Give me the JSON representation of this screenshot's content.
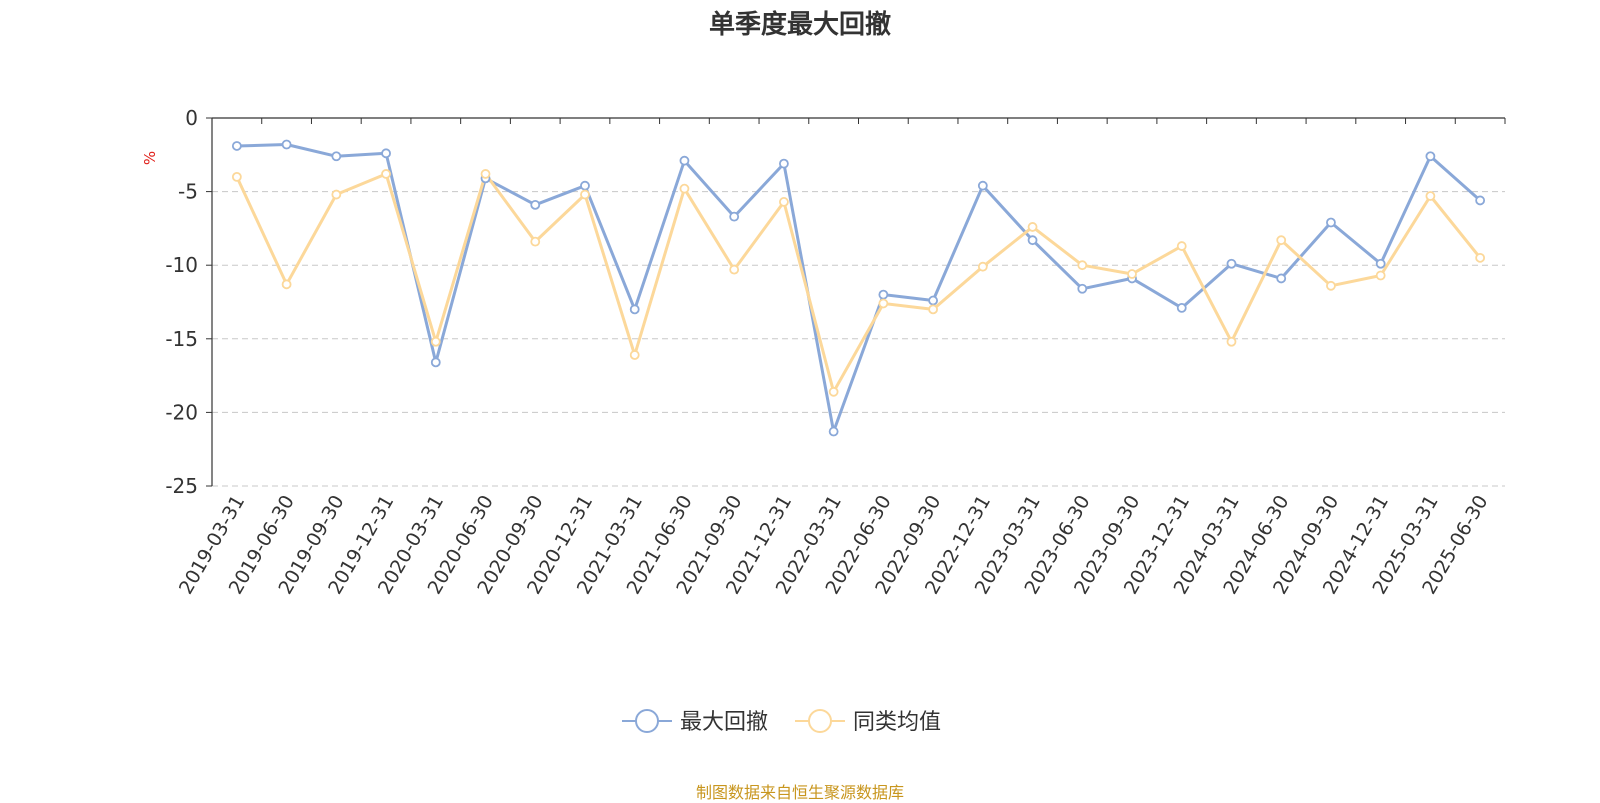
{
  "chart_data": {
    "type": "line",
    "title": "单季度最大回撤",
    "ylabel": "%",
    "xlabel": "",
    "ylim": [
      -25,
      0
    ],
    "yticks": [
      0,
      -5,
      -10,
      -15,
      -20,
      -25
    ],
    "grid": true,
    "legend_position": "bottom-center",
    "categories": [
      "2019-03-31",
      "2019-06-30",
      "2019-09-30",
      "2019-12-31",
      "2020-03-31",
      "2020-06-30",
      "2020-09-30",
      "2020-12-31",
      "2021-03-31",
      "2021-06-30",
      "2021-09-30",
      "2021-12-31",
      "2022-03-31",
      "2022-06-30",
      "2022-09-30",
      "2022-12-31",
      "2023-03-31",
      "2023-06-30",
      "2023-09-30",
      "2023-12-31",
      "2024-03-31",
      "2024-06-30",
      "2024-09-30",
      "2024-12-31",
      "2025-03-31",
      "2025-06-30"
    ],
    "series": [
      {
        "name": "最大回撤",
        "color": "#8aa8d8",
        "values": [
          -1.9,
          -1.8,
          -2.6,
          -2.4,
          -16.6,
          -4.1,
          -5.9,
          -4.6,
          -13.0,
          -2.9,
          -6.7,
          -3.1,
          -21.3,
          -12.0,
          -12.4,
          -4.6,
          -8.3,
          -11.6,
          -10.9,
          -12.9,
          -9.9,
          -10.9,
          -7.1,
          -9.9,
          -2.6,
          -5.6
        ]
      },
      {
        "name": "同类均值",
        "color": "#fcd89a",
        "values": [
          -4.0,
          -11.3,
          -5.2,
          -3.8,
          -15.2,
          -3.8,
          -8.4,
          -5.2,
          -16.1,
          -4.8,
          -10.3,
          -5.7,
          -18.6,
          -12.6,
          -13.0,
          -10.1,
          -7.4,
          -10.0,
          -10.6,
          -8.7,
          -15.2,
          -8.3,
          -11.4,
          -10.7,
          -5.3,
          -9.5
        ]
      }
    ]
  },
  "source_note": "制图数据来自恒生聚源数据库",
  "colors": {
    "axis": "#333333",
    "grid": "#c8c8c8",
    "ylabel": "#e0201a",
    "source": "#c8961e"
  }
}
